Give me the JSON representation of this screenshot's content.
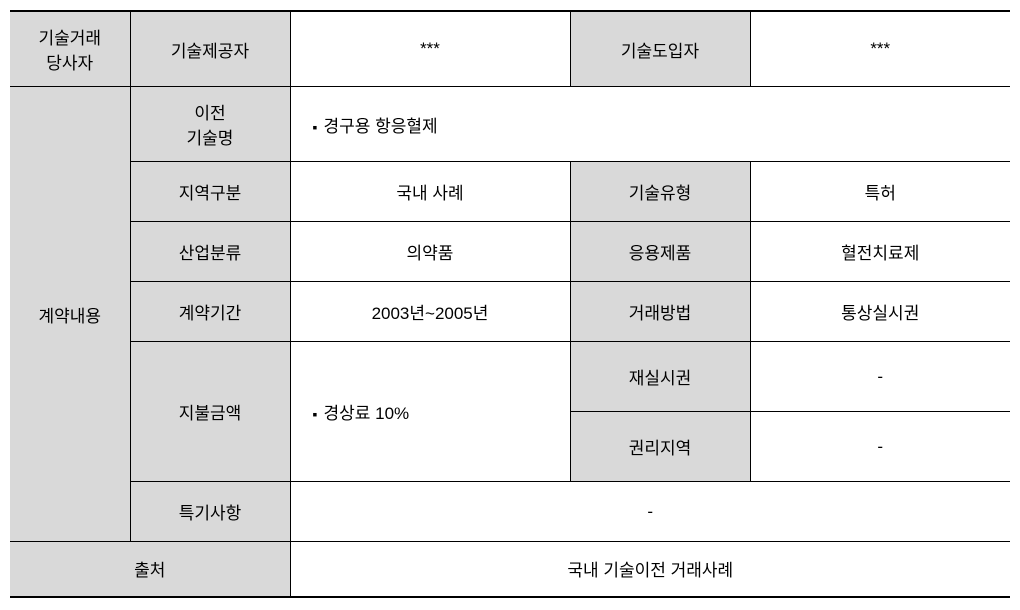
{
  "sections": {
    "parties": {
      "label": "기술거래\n당사자",
      "provider_label": "기술제공자",
      "provider_value": "***",
      "importer_label": "기술도입자",
      "importer_value": "***"
    },
    "contract": {
      "label": "계약내용",
      "rows": {
        "tech_name": {
          "label": "이전\n기술명",
          "value": "경구용 항응혈제"
        },
        "region": {
          "label": "지역구분",
          "value": "국내 사례",
          "type_label": "기술유형",
          "type_value": "특허"
        },
        "industry": {
          "label": "산업분류",
          "value": "의약품",
          "app_label": "응용제품",
          "app_value": "혈전치료제"
        },
        "period": {
          "label": "계약기간",
          "value": "2003년~2005년",
          "method_label": "거래방법",
          "method_value": "통상실시권"
        },
        "payment": {
          "label": "지불금액",
          "value": "경상료 10%",
          "sublicense_label": "재실시권",
          "sublicense_value": "-",
          "territory_label": "권리지역",
          "territory_value": "-"
        },
        "special": {
          "label": "특기사항",
          "value": "-"
        }
      }
    },
    "source": {
      "label": "출처",
      "value": "국내 기술이전 거래사례"
    }
  },
  "colors": {
    "header_bg": "#d9d9d9",
    "border": "#000000",
    "background": "#ffffff",
    "text": "#000000"
  },
  "typography": {
    "base_fontsize": 17,
    "font_family": "Malgun Gothic"
  }
}
